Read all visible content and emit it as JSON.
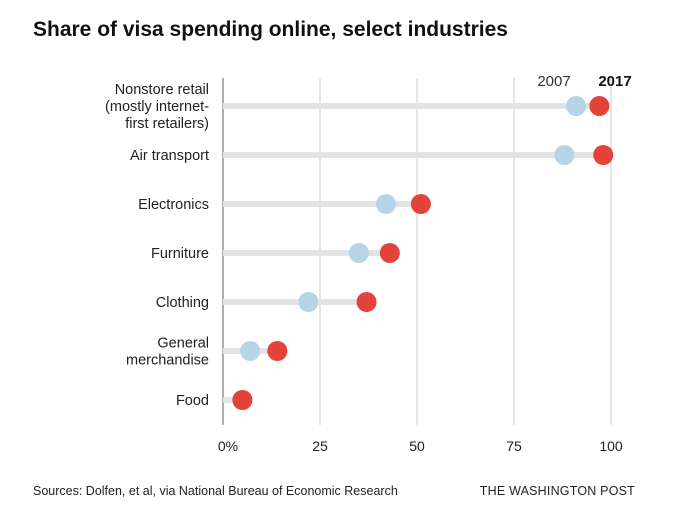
{
  "header": {
    "title": "Share of visa spending online, select industries"
  },
  "footer": {
    "source": "Sources: Dolfen, et al, via National Bureau of Economic Research",
    "credit": "THE WASHINGTON POST"
  },
  "colors": {
    "year_2007": "#b7d3e6",
    "year_2017": "#e3433b",
    "track": "#e3e3e3",
    "grid": "#cccccc",
    "axis": "#999999"
  },
  "chart_data": {
    "type": "dot",
    "title": "Share of visa spending online, select industries",
    "xlabel": "",
    "ylabel": "",
    "xlim": [
      0,
      100
    ],
    "x_ticks": [
      0,
      25,
      50,
      75,
      100
    ],
    "x_tick_labels": [
      "0%",
      "25",
      "50",
      "75",
      "100"
    ],
    "legend": {
      "placement": "top-right",
      "entries": [
        "2007",
        "2017"
      ]
    },
    "categories": [
      [
        "Nonstore retail",
        "(mostly internet-",
        "first retailers)"
      ],
      [
        "Air transport"
      ],
      [
        "Electronics"
      ],
      [
        "Furniture"
      ],
      [
        "Clothing"
      ],
      [
        "General",
        "merchandise"
      ],
      [
        "Food"
      ]
    ],
    "series": [
      {
        "name": "2007",
        "values": [
          91,
          88,
          42,
          35,
          22,
          7,
          5
        ]
      },
      {
        "name": "2017",
        "values": [
          97,
          98,
          51,
          43,
          37,
          14,
          5
        ]
      }
    ]
  }
}
